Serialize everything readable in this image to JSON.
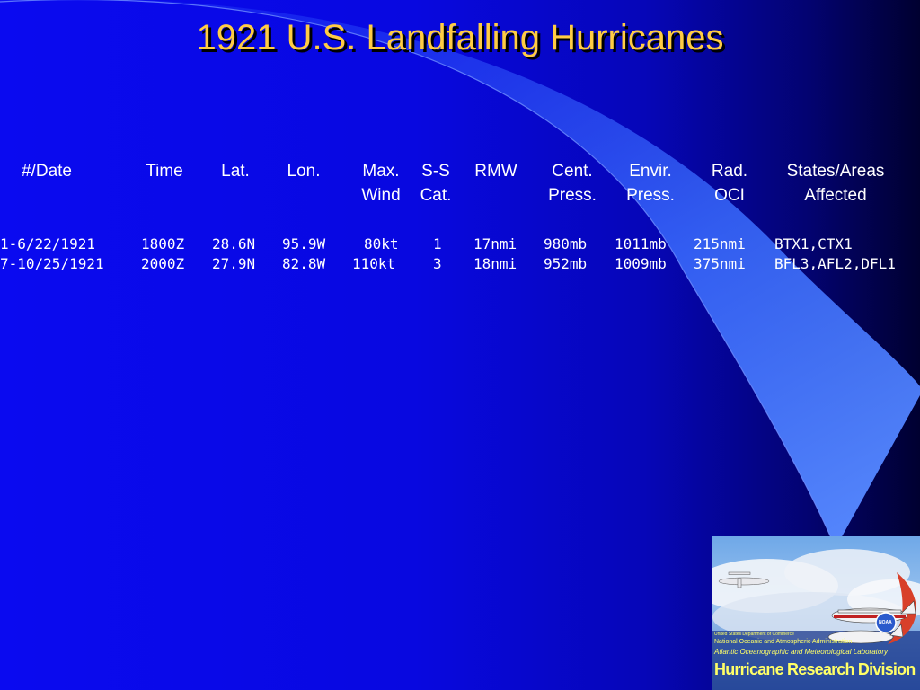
{
  "slide": {
    "title": "1921 U.S. Landfalling Hurricanes"
  },
  "table": {
    "headers": [
      {
        "line1": "#/Date",
        "line2": ""
      },
      {
        "line1": "Time",
        "line2": ""
      },
      {
        "line1": "Lat.",
        "line2": ""
      },
      {
        "line1": "Lon.",
        "line2": ""
      },
      {
        "line1": "Max.",
        "line2": "Wind"
      },
      {
        "line1": "S-S",
        "line2": "Cat."
      },
      {
        "line1": "RMW",
        "line2": ""
      },
      {
        "line1": "Cent.",
        "line2": "Press."
      },
      {
        "line1": "Envir.",
        "line2": "Press."
      },
      {
        "line1": "Rad.",
        "line2": "OCI"
      },
      {
        "line1": "States/Areas",
        "line2": "Affected"
      }
    ],
    "rows": [
      [
        "1-6/22/1921",
        "1800Z",
        "28.6N",
        "95.9W",
        "80kt",
        "1",
        "17nmi",
        "980mb",
        "1011mb",
        "215nmi",
        "BTX1,CTX1"
      ],
      [
        "7-10/25/1921",
        "2000Z",
        "27.9N",
        "82.8W",
        "110kt",
        "3",
        "18nmi",
        "952mb",
        "1009mb",
        "375nmi",
        "BFL3,AFL2,DFL1"
      ]
    ]
  },
  "logo": {
    "line1": "United States Department of Commerce",
    "line2": "National Oceanic and Atmospheric Administration",
    "line3": "Atlantic Oceanographic and Meteorological Laboratory",
    "line4": "Hurricane Research Division",
    "noaa_badge": "NOAA"
  },
  "colors": {
    "title": "#ffcc44",
    "background_left": "#0a0af0",
    "background_right": "#000030",
    "swoosh": "#3a6cff",
    "logo_text": "#ffff66"
  }
}
